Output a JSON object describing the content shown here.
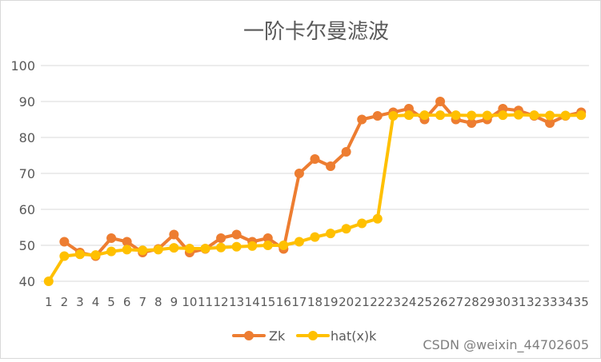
{
  "chart_data": {
    "type": "line",
    "title": "一阶卡尔曼滤波",
    "xlabel": "",
    "ylabel": "",
    "ylim": [
      40,
      100
    ],
    "yticks": [
      40,
      50,
      60,
      70,
      80,
      90,
      100
    ],
    "grid": "horizontal",
    "legend_position": "bottom",
    "x": [
      "1",
      "2",
      "3",
      "4",
      "5",
      "6",
      "7",
      "8",
      "9",
      "10",
      "11",
      "12",
      "13",
      "14",
      "15",
      "16",
      "17",
      "18",
      "19",
      "20",
      "21",
      "22",
      "23",
      "24",
      "25",
      "26",
      "27",
      "28",
      "29",
      "30",
      "31",
      "32",
      "33",
      "34",
      "35"
    ],
    "series": [
      {
        "name": "Zk",
        "color": "#ED7D31",
        "values": [
          null,
          51,
          48,
          47,
          52,
          51,
          48,
          49,
          53,
          48,
          49,
          52,
          53,
          51,
          52,
          49,
          70,
          74,
          72,
          76,
          85,
          86,
          87,
          88,
          85,
          90,
          85,
          84,
          85,
          88,
          87.5,
          86,
          84,
          86,
          87
        ]
      },
      {
        "name": "hat(x)k",
        "color": "#FFC000",
        "values": [
          40,
          47,
          47.5,
          47.3,
          48.3,
          48.8,
          48.6,
          48.8,
          49.3,
          49.1,
          49.1,
          49.4,
          49.6,
          49.8,
          50,
          50,
          51,
          52.3,
          53.3,
          54.6,
          56.1,
          57.4,
          86,
          86.2,
          86.2,
          86.2,
          86.2,
          86.1,
          86.1,
          86.2,
          86.3,
          86.2,
          86.1,
          86.1,
          86.2
        ]
      }
    ]
  },
  "watermark": "CSDN @weixin_44702605"
}
